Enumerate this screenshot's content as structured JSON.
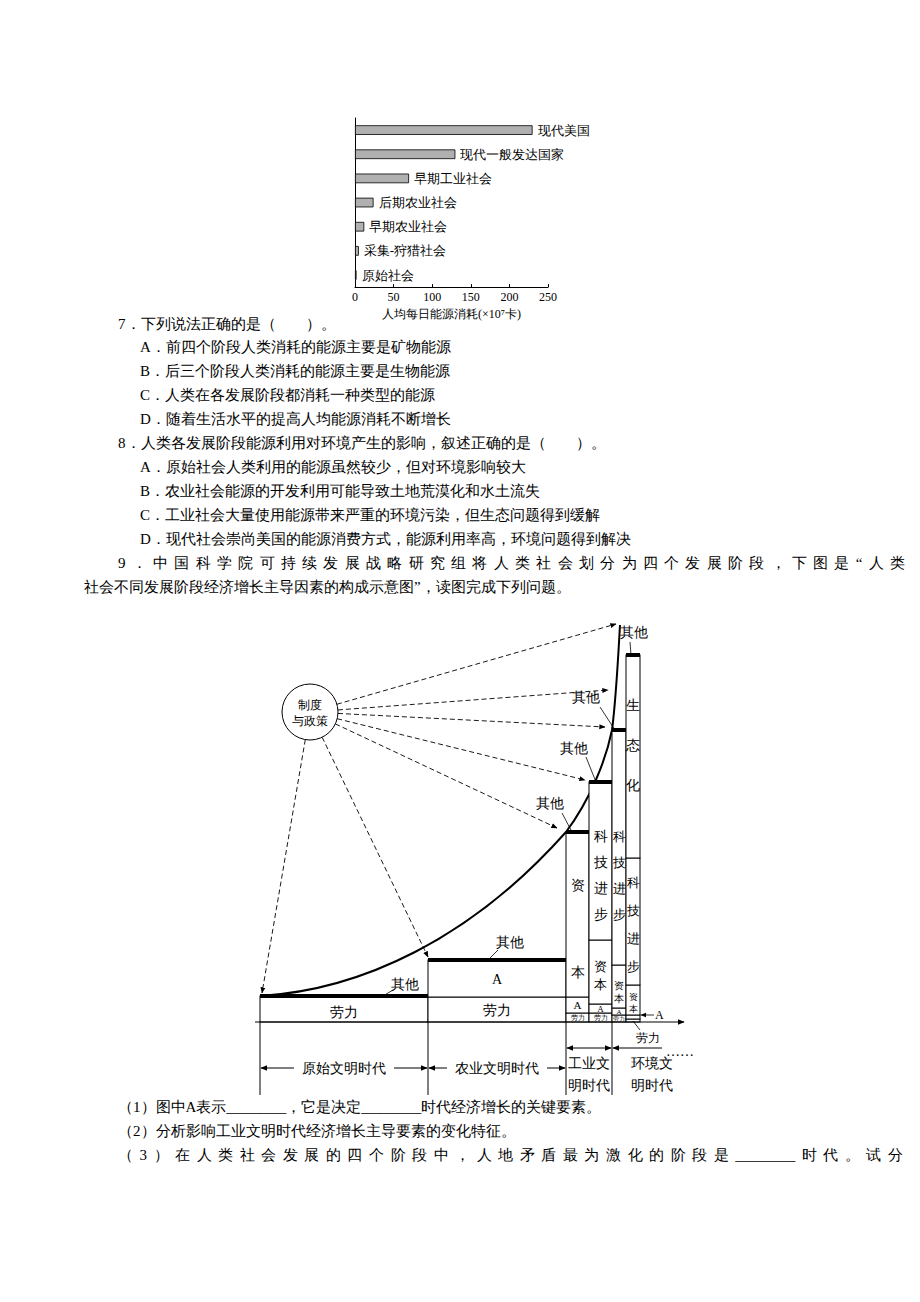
{
  "chart_data": {
    "type": "bar",
    "orientation": "horizontal",
    "categories": [
      "原始社会",
      "采集-狩猎社会",
      "早期农业社会",
      "后期农业社会",
      "早期工业社会",
      "现代一般发达国家",
      "现代美国"
    ],
    "values": [
      2,
      5,
      12,
      24,
      70,
      130,
      230
    ],
    "color": "#b0b0b0",
    "xlabel": "人均每日能源消耗(×10⁷卡)",
    "xlim": [
      0,
      250
    ],
    "xticks": [
      0,
      50,
      100,
      150,
      200,
      250
    ],
    "grid": false,
    "tick_labels": "x",
    "data_labels": false
  },
  "document": {
    "questions": [
      {
        "stem": "7．下列说法正确的是（　　）。",
        "options": [
          "A．前四个阶段人类消耗的能源主要是矿物能源",
          "B．后三个阶段人类消耗的能源主要是生物能源",
          "C．人类在各发展阶段都消耗一种类型的能源",
          "D．随着生活水平的提高人均能源消耗不断增长"
        ]
      },
      {
        "stem": "8．人类各发展阶段能源利用对环境产生的影响，叙述正确的是（　　）。",
        "options": [
          "A．原始社会人类利用的能源虽然较少，但对环境影响较大",
          "B．农业社会能源的开发利用可能导致土地荒漠化和水土流失",
          "C．工业社会大量使用能源带来严重的环境污染，但生态问题得到缓解",
          "D．现代社会崇尚美国的能源消费方式，能源利用率高，环境问题得到解决"
        ]
      }
    ],
    "q9": {
      "stem_lines": [
        "9．中国科学院可持续发展战略研究组将人类社会划分为四个发展阶段，下图是“人类",
        "社会不同发展阶段经济增长主导因素的构成示意图”，读图完成下列问题。"
      ],
      "diagram": {
        "policy": "制度与政策",
        "continuation": "……",
        "eras": [
          {
            "label": "原始文明时代",
            "columns": [
              {
                "segments": [
                  "劳力"
                ],
                "top": "其他"
              }
            ]
          },
          {
            "label": "农业文明时代",
            "columns": [
              {
                "segments": [
                  "劳力",
                  "A"
                ],
                "top": "其他"
              }
            ]
          },
          {
            "label": "工业文明时代",
            "columns": [
              {
                "segments": [
                  "劳力",
                  "A",
                  "资本"
                ],
                "top": "其他"
              },
              {
                "segments": [
                  "劳力",
                  "A",
                  "资本",
                  "科技进步"
                ],
                "top": "其他"
              }
            ]
          },
          {
            "label": "环境文明时代",
            "columns": [
              {
                "segments": [
                  "劳力",
                  "A",
                  "资本",
                  "科技进步"
                ],
                "top": "其他"
              },
              {
                "segments": [
                  "劳力",
                  "A",
                  "资本",
                  "科技进步",
                  "生态化"
                ],
                "top": "其他"
              }
            ]
          }
        ]
      },
      "subquestions": [
        "（1）图中A表示________，它是决定________时代经济增长的关键要素。",
        "（2）分析影响工业文明时代经济增长主导要素的变化特征。",
        "（3）在人类社会发展的四个阶段中，人地矛盾最为激化的阶段是________时代。试分"
      ]
    }
  }
}
